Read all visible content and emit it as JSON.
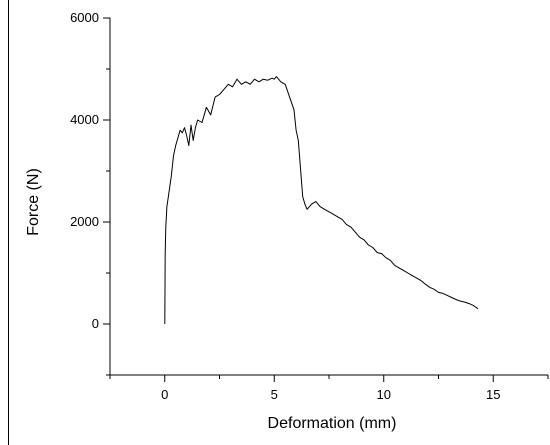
{
  "chart_data": {
    "type": "line",
    "xlabel": "Deformation (mm)",
    "ylabel": "Force (N)",
    "xlim": [
      -2.5,
      17.5
    ],
    "ylim": [
      -1000,
      6000
    ],
    "x_major_ticks": [
      0,
      5,
      10,
      15
    ],
    "x_minor_ticks": [
      -2.5,
      2.5,
      7.5,
      12.5,
      17.5
    ],
    "y_major_ticks": [
      0,
      2000,
      4000,
      6000
    ],
    "y_minor_ticks": [
      -1000,
      1000,
      3000,
      5000
    ],
    "x_tick_labels": [
      "0",
      "5",
      "10",
      "15"
    ],
    "y_tick_labels": [
      "0",
      "2000",
      "4000",
      "6000"
    ],
    "grid": false,
    "legend": "none",
    "line_color": "#000000",
    "series": [
      {
        "x": [
          0.0,
          0.02,
          0.05,
          0.1,
          0.2,
          0.3,
          0.4,
          0.5,
          0.6,
          0.7,
          0.8,
          0.9,
          1.0,
          1.1,
          1.2,
          1.3,
          1.4,
          1.5,
          1.7,
          1.9,
          2.1,
          2.3,
          2.5,
          2.7,
          2.9,
          3.1,
          3.3,
          3.5,
          3.7,
          3.9,
          4.1,
          4.3,
          4.5,
          4.7,
          4.9,
          5.0,
          5.1,
          5.3,
          5.5,
          5.7,
          5.9,
          6.0,
          6.1,
          6.2,
          6.3,
          6.4,
          6.5,
          6.7,
          6.9,
          7.1,
          7.3,
          7.5,
          7.7,
          7.9,
          8.1,
          8.3,
          8.5,
          8.7,
          8.9,
          9.1,
          9.3,
          9.5,
          9.7,
          9.9,
          10.1,
          10.3,
          10.5,
          10.7,
          10.9,
          11.1,
          11.3,
          11.5,
          11.7,
          11.9,
          12.1,
          12.3,
          12.5,
          12.7,
          12.9,
          13.1,
          13.3,
          13.5,
          13.7,
          13.9,
          14.1,
          14.3
        ],
        "y": [
          0,
          1400,
          1900,
          2300,
          2600,
          2900,
          3300,
          3500,
          3650,
          3800,
          3750,
          3850,
          3700,
          3500,
          3900,
          3600,
          3850,
          4000,
          3950,
          4250,
          4100,
          4450,
          4500,
          4600,
          4700,
          4650,
          4800,
          4700,
          4750,
          4700,
          4800,
          4750,
          4800,
          4780,
          4820,
          4800,
          4850,
          4750,
          4700,
          4450,
          4200,
          3800,
          3600,
          3050,
          2500,
          2350,
          2250,
          2350,
          2400,
          2300,
          2250,
          2200,
          2150,
          2100,
          2050,
          1950,
          1900,
          1800,
          1700,
          1650,
          1550,
          1500,
          1400,
          1380,
          1300,
          1250,
          1150,
          1100,
          1050,
          1000,
          950,
          900,
          850,
          780,
          720,
          680,
          620,
          600,
          560,
          520,
          480,
          450,
          430,
          400,
          360,
          300
        ]
      }
    ]
  }
}
